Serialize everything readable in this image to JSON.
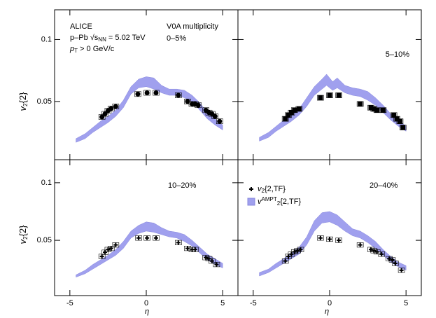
{
  "x_label": "η",
  "y_label": {
    "v": "v",
    "sub": "2",
    "rest": "{2}"
  },
  "chart_data": [
    {
      "type": "errorband",
      "title": "0–5%",
      "annotations": {
        "experiment": "ALICE",
        "system": {
          "a": "p–Pb ",
          "b": "√s",
          "sub": "NN",
          "c": " = 5.02 TeV"
        },
        "pt": {
          "a": "p",
          "sub": "T",
          "c": " > 0 GeV/c"
        },
        "estimator": "V0A multiplicity"
      },
      "xlim": [
        -6,
        6
      ],
      "ylim": [
        0.003,
        0.124
      ],
      "xticks": [
        -5,
        0,
        5
      ],
      "yticks": [
        0.05,
        0.1
      ],
      "marker": "circle",
      "syst": 0.002,
      "series": [
        {
          "color": "#000000",
          "x": [
            -2.9,
            -2.7,
            -2.5,
            -2.3,
            -2.0,
            -0.55,
            0.05,
            0.64,
            2.1,
            2.7,
            3.0,
            3.2,
            3.4,
            3.9,
            4.1,
            4.3,
            4.5,
            4.8
          ],
          "values": [
            0.0375,
            0.04,
            0.0426,
            0.0443,
            0.046,
            0.056,
            0.057,
            0.057,
            0.055,
            0.05,
            0.048,
            0.048,
            0.047,
            0.043,
            0.041,
            0.04,
            0.038,
            0.034
          ]
        },
        {
          "color": "#a0a0ee",
          "x": [
            -4.6,
            -4,
            -3.5,
            -3,
            -2.5,
            -2,
            -1.5,
            -1,
            -0.5,
            0,
            0.5,
            1,
            1.5,
            2,
            2.5,
            3,
            3.5,
            4,
            4.5,
            5
          ],
          "lower": [
            0.017,
            0.02,
            0.025,
            0.029,
            0.033,
            0.038,
            0.045,
            0.056,
            0.061,
            0.062,
            0.06,
            0.057,
            0.055,
            0.055,
            0.053,
            0.05,
            0.043,
            0.036,
            0.031,
            0.027
          ],
          "upper": [
            0.02,
            0.024,
            0.029,
            0.034,
            0.038,
            0.043,
            0.051,
            0.062,
            0.068,
            0.07,
            0.069,
            0.063,
            0.06,
            0.06,
            0.059,
            0.055,
            0.049,
            0.041,
            0.036,
            0.031
          ]
        }
      ]
    },
    {
      "type": "errorband",
      "title": "5–10%",
      "xlim": [
        -6,
        6
      ],
      "ylim": [
        0.003,
        0.124
      ],
      "xticks": [
        -5,
        0,
        5
      ],
      "yticks": [
        0.05,
        0.1
      ],
      "marker": "square",
      "syst": 0.002,
      "series": [
        {
          "color": "#000000",
          "x": [
            -2.9,
            -2.7,
            -2.5,
            -2.3,
            -2.0,
            -0.6,
            0.0,
            0.6,
            2.0,
            2.7,
            2.9,
            3.1,
            3.5,
            4.2,
            4.4,
            4.6,
            4.8
          ],
          "values": [
            0.036,
            0.039,
            0.041,
            0.043,
            0.044,
            0.053,
            0.055,
            0.055,
            0.048,
            0.045,
            0.044,
            0.043,
            0.043,
            0.039,
            0.036,
            0.034,
            0.029
          ]
        },
        {
          "color": "#a0a0ee",
          "x": [
            -4.6,
            -4,
            -3.5,
            -3,
            -2.5,
            -2,
            -1.5,
            -1,
            -0.5,
            -0.2,
            0.2,
            0.5,
            1,
            1.5,
            2,
            2.5,
            3,
            3.5,
            4,
            4.5,
            5
          ],
          "lower": [
            0.018,
            0.021,
            0.026,
            0.03,
            0.034,
            0.039,
            0.046,
            0.055,
            0.06,
            0.063,
            0.059,
            0.061,
            0.057,
            0.055,
            0.054,
            0.051,
            0.047,
            0.041,
            0.035,
            0.03,
            0.026
          ],
          "upper": [
            0.021,
            0.025,
            0.03,
            0.035,
            0.039,
            0.044,
            0.053,
            0.062,
            0.068,
            0.072,
            0.066,
            0.069,
            0.063,
            0.061,
            0.06,
            0.058,
            0.053,
            0.047,
            0.04,
            0.035,
            0.03
          ]
        }
      ]
    },
    {
      "type": "errorband",
      "title": "10–20%",
      "xlim": [
        -6,
        6
      ],
      "ylim": [
        0.002,
        0.12
      ],
      "xticks": [
        -5,
        0,
        5
      ],
      "yticks": [
        0.05,
        0.1
      ],
      "marker": "plus",
      "syst": 0.002,
      "series": [
        {
          "color": "#000000",
          "x": [
            -2.9,
            -2.7,
            -2.5,
            -2.3,
            -2.0,
            -0.5,
            0.05,
            0.64,
            2.1,
            2.7,
            3.0,
            3.2,
            3.9,
            4.1,
            4.3,
            4.6
          ],
          "values": [
            0.036,
            0.0396,
            0.042,
            0.043,
            0.046,
            0.052,
            0.052,
            0.052,
            0.048,
            0.043,
            0.042,
            0.042,
            0.035,
            0.034,
            0.032,
            0.029
          ]
        },
        {
          "color": "#a0a0ee",
          "x": [
            -4.6,
            -4,
            -3.5,
            -3,
            -2.5,
            -2,
            -1.5,
            -1,
            -0.5,
            0,
            0.5,
            1,
            1.5,
            2,
            2.5,
            3,
            3.5,
            4,
            4.5,
            5
          ],
          "lower": [
            0.018,
            0.021,
            0.025,
            0.029,
            0.033,
            0.037,
            0.043,
            0.052,
            0.056,
            0.058,
            0.057,
            0.055,
            0.053,
            0.052,
            0.049,
            0.045,
            0.039,
            0.033,
            0.029,
            0.026
          ],
          "upper": [
            0.02,
            0.024,
            0.029,
            0.033,
            0.037,
            0.042,
            0.049,
            0.058,
            0.063,
            0.066,
            0.065,
            0.061,
            0.058,
            0.057,
            0.055,
            0.05,
            0.044,
            0.038,
            0.034,
            0.03
          ]
        }
      ]
    },
    {
      "type": "errorband",
      "title": "20–40%",
      "xlim": [
        -6,
        6
      ],
      "ylim": [
        0.002,
        0.12
      ],
      "xticks": [
        -5,
        0,
        5
      ],
      "yticks": [
        0.05,
        0.1
      ],
      "marker": "plus",
      "syst": 0.002,
      "series": [
        {
          "name": {
            "v": "v",
            "sub": "2",
            "rest": "{2,TF}"
          },
          "color": "#000000",
          "x": [
            -2.9,
            -2.7,
            -2.5,
            -2.3,
            -2.1,
            -1.9,
            -0.6,
            0.0,
            0.6,
            2.0,
            2.7,
            2.9,
            3.1,
            3.4,
            3.9,
            4.1,
            4.3,
            4.7
          ],
          "values": [
            0.032,
            0.036,
            0.038,
            0.04,
            0.041,
            0.042,
            0.052,
            0.051,
            0.05,
            0.046,
            0.042,
            0.041,
            0.04,
            0.038,
            0.034,
            0.033,
            0.03,
            0.024
          ]
        },
        {
          "name": {
            "v": "v",
            "sub": "2",
            "sup": "AMPT",
            "rest": "{2,TF}"
          },
          "color": "#a0a0ee",
          "x": [
            -4.6,
            -4,
            -3.5,
            -3,
            -2.5,
            -2,
            -1.5,
            -1,
            -0.5,
            0,
            0.5,
            1,
            1.5,
            2,
            2.5,
            3,
            3.5,
            4,
            4.5,
            5
          ],
          "lower": [
            0.019,
            0.022,
            0.026,
            0.03,
            0.034,
            0.038,
            0.046,
            0.058,
            0.065,
            0.066,
            0.063,
            0.058,
            0.054,
            0.052,
            0.048,
            0.043,
            0.037,
            0.031,
            0.027,
            0.024
          ],
          "upper": [
            0.022,
            0.025,
            0.03,
            0.034,
            0.039,
            0.044,
            0.053,
            0.067,
            0.074,
            0.075,
            0.072,
            0.066,
            0.06,
            0.058,
            0.054,
            0.049,
            0.042,
            0.036,
            0.031,
            0.028
          ]
        }
      ]
    }
  ]
}
